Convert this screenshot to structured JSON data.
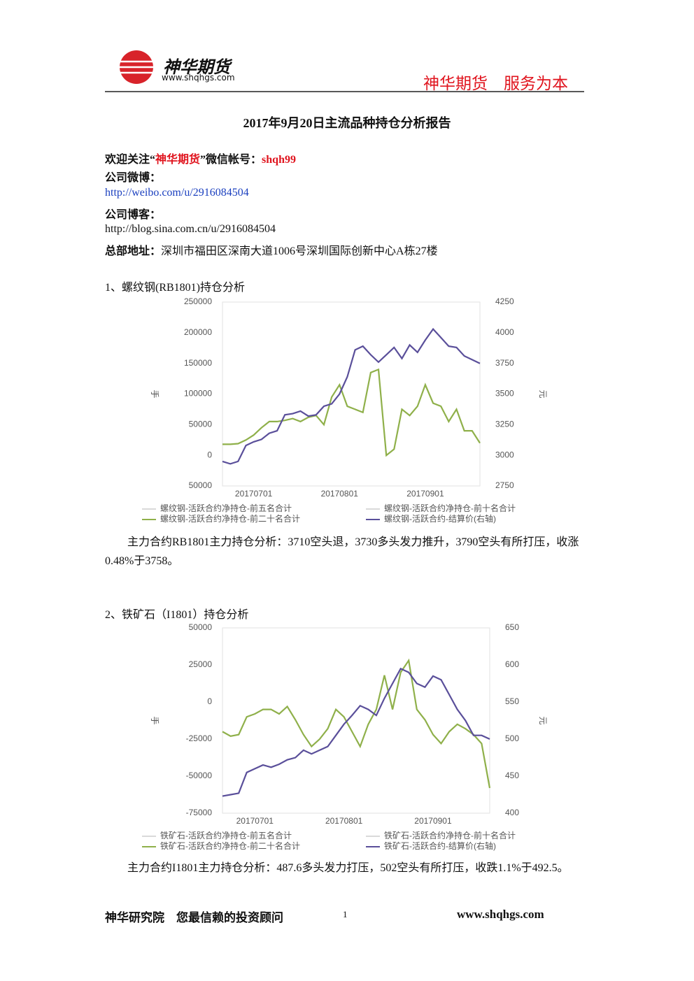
{
  "header": {
    "brand": "神华期货",
    "url": "www.shqhgs.com",
    "slogan": "神华期货　服务为本"
  },
  "title": "2017年9月20日主流品种持仓分析报告",
  "contact": {
    "wechat": [
      "欢迎关注“",
      "神华期货",
      "”微信帐号：",
      "shqh99"
    ],
    "weibo_label": "公司微博：",
    "weibo_url": "http://weibo.com/u/2916084504",
    "blog_label": "公司博客：",
    "blog_url": "http://blog.sina.com.cn/u/2916084504",
    "address_label": "总部地址：",
    "address": "深圳市福田区深南大道1006号深圳国际创新中心A栋27楼"
  },
  "sections": [
    {
      "heading": "1、螺纹钢(RB1801)持仓分析",
      "analysis": "主力合约RB1801主力持仓分析：3710空头退，3730多头发力推升，3790空头有所打压，收涨0.48%于3758。"
    },
    {
      "heading": "2、铁矿石（I1801）持仓分析",
      "analysis": "主力合约I1801主力持仓分析：487.6多头发力打压，502空头有所打压，收跌1.1%于492.5。"
    }
  ],
  "chart_data": [
    {
      "type": "line",
      "ylabel": "手",
      "y2label": "元",
      "categories": [
        null,
        null,
        null,
        null,
        "20170701",
        null,
        null,
        null,
        null,
        null,
        null,
        null,
        null,
        null,
        null,
        "20170801",
        null,
        null,
        null,
        null,
        null,
        null,
        null,
        null,
        null,
        null,
        "20170901",
        null,
        null,
        null,
        null,
        null,
        null,
        null
      ],
      "ylim": [
        -50000,
        250000
      ],
      "yticks": [
        {
          "value": -50000,
          "label": "50000"
        },
        0,
        50000,
        100000,
        150000,
        200000,
        250000
      ],
      "y2lim": [
        2750,
        4250
      ],
      "y2ticks": [
        2750,
        3000,
        3250,
        3500,
        3750,
        4000,
        4250
      ],
      "legend": "bottom",
      "series": [
        {
          "name": "螺纹钢-活跃合约净持仓-前五名合计",
          "color": "#d9d9d9",
          "values": [
            null,
            null,
            null,
            null,
            null,
            null,
            null,
            null,
            null,
            null,
            null,
            null,
            null,
            null,
            null,
            null,
            null,
            null,
            null,
            null,
            null,
            null,
            null,
            null,
            null,
            null,
            null,
            null,
            null,
            null,
            null,
            null,
            null,
            null
          ]
        },
        {
          "name": "螺纹钢-活跃合约净持仓-前十名合计",
          "color": "#d9d9d9",
          "values": [
            null,
            null,
            null,
            null,
            null,
            null,
            null,
            null,
            null,
            null,
            null,
            null,
            null,
            null,
            null,
            null,
            null,
            null,
            null,
            null,
            null,
            null,
            null,
            null,
            null,
            null,
            null,
            null,
            null,
            null,
            null,
            null,
            null,
            null
          ]
        },
        {
          "name": "螺纹钢-活跃合约净持仓-前二十名合计",
          "color": "#8fb04a",
          "values": [
            18000,
            18000,
            19000,
            25000,
            33000,
            45000,
            55000,
            55000,
            57000,
            60000,
            55000,
            62000,
            65000,
            50000,
            95000,
            115000,
            80000,
            75000,
            70000,
            135000,
            140000,
            0,
            10000,
            75000,
            65000,
            80000,
            115000,
            85000,
            80000,
            55000,
            75000,
            40000,
            40000,
            20000
          ]
        },
        {
          "name": "螺纹钢-活跃合约-结算价(右轴)",
          "color": "#5a4f9a",
          "axis": "y2",
          "values": [
            2950,
            2930,
            2950,
            3080,
            3110,
            3130,
            3180,
            3200,
            3330,
            3340,
            3360,
            3320,
            3330,
            3400,
            3420,
            3500,
            3640,
            3860,
            3890,
            3820,
            3760,
            3820,
            3880,
            3790,
            3900,
            3840,
            3940,
            4030,
            3960,
            3890,
            3880,
            3810,
            3780,
            3750
          ]
        }
      ]
    },
    {
      "type": "line",
      "ylabel": "手",
      "y2label": "元",
      "categories": [
        null,
        null,
        null,
        null,
        "20170701",
        null,
        null,
        null,
        null,
        null,
        null,
        null,
        null,
        null,
        null,
        "20170801",
        null,
        null,
        null,
        null,
        null,
        null,
        null,
        null,
        null,
        null,
        "20170901",
        null,
        null,
        null,
        null,
        null,
        null,
        null
      ],
      "ylim": [
        -75000,
        50000
      ],
      "yticks": [
        -75000,
        -50000,
        -25000,
        0,
        25000,
        50000
      ],
      "y2lim": [
        400,
        650
      ],
      "y2ticks": [
        400,
        450,
        500,
        550,
        600,
        650
      ],
      "legend": "bottom",
      "series": [
        {
          "name": "铁矿石-活跃合约净持仓-前五名合计",
          "color": "#d9d9d9",
          "values": [
            null,
            null,
            null,
            null,
            null,
            null,
            null,
            null,
            null,
            null,
            null,
            null,
            null,
            null,
            null,
            null,
            null,
            null,
            null,
            null,
            null,
            null,
            null,
            null,
            null,
            null,
            null,
            null,
            null,
            null,
            null,
            null,
            null,
            null
          ]
        },
        {
          "name": "铁矿石-活跃合约净持仓-前十名合计",
          "color": "#d9d9d9",
          "values": [
            null,
            null,
            null,
            null,
            null,
            null,
            null,
            null,
            null,
            null,
            null,
            null,
            null,
            null,
            null,
            null,
            null,
            null,
            null,
            null,
            null,
            null,
            null,
            null,
            null,
            null,
            null,
            null,
            null,
            null,
            null,
            null,
            null,
            null
          ]
        },
        {
          "name": "铁矿石-活跃合约净持仓-前二十名合计",
          "color": "#8fb04a",
          "values": [
            -20000,
            -23000,
            -22000,
            -10000,
            -8000,
            -5000,
            -5000,
            -8000,
            -3000,
            -12000,
            -22000,
            -30000,
            -25000,
            -18000,
            -5000,
            -10000,
            -20000,
            -30000,
            -15000,
            -5000,
            18000,
            -5000,
            20000,
            28000,
            -5000,
            -12000,
            -22000,
            -28000,
            -20000,
            -15000,
            -18000,
            -22000,
            -28000,
            -58000
          ]
        },
        {
          "name": "铁矿石-活跃合约-结算价(右轴)",
          "color": "#5a4f9a",
          "axis": "y2",
          "values": [
            423,
            425,
            427,
            455,
            460,
            465,
            462,
            466,
            472,
            475,
            485,
            480,
            485,
            490,
            505,
            520,
            532,
            545,
            540,
            532,
            555,
            575,
            595,
            590,
            575,
            570,
            585,
            580,
            560,
            540,
            525,
            505,
            505,
            500
          ]
        }
      ]
    }
  ],
  "footer": {
    "left": "神华研究院　您最信赖的投资顾问",
    "page": "1",
    "url": "www.shqhgs.com"
  }
}
